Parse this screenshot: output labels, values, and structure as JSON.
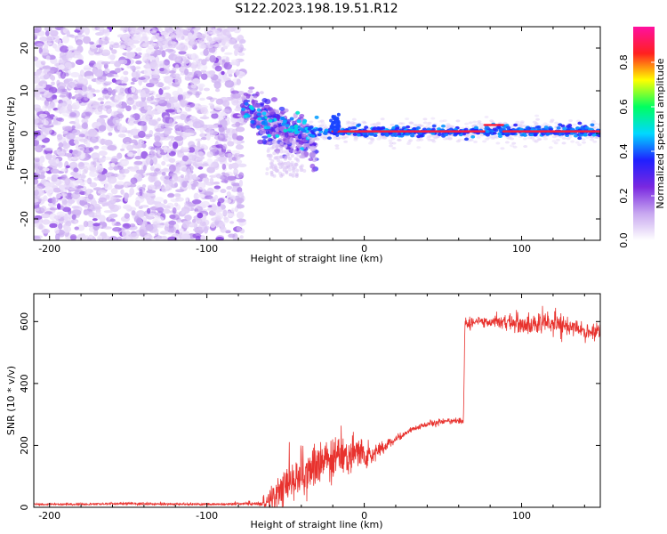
{
  "title": "S122.2023.198.19.51.R12",
  "colors": {
    "snr_line": "#e8322e",
    "axis": "#000000",
    "background": "#ffffff"
  },
  "chart_data": [
    {
      "type": "heatmap",
      "xlabel": "Height of straight line (km)",
      "ylabel": "Frequency (Hz)",
      "xlim": [
        -210,
        150
      ],
      "ylim": [
        -25,
        25
      ],
      "xticks": [
        -200,
        -100,
        0,
        100
      ],
      "yticks": [
        -20,
        -10,
        0,
        10,
        20
      ],
      "colorbar": {
        "label": "Normalized spectral amplitude",
        "range": [
          0,
          1
        ],
        "ticks": [
          "0.0",
          "0.2",
          "0.4",
          "0.6",
          "0.8"
        ],
        "colormap": [
          "#ffffff",
          "#c8a8f0",
          "#7a28e0",
          "#2020ff",
          "#00d8ff",
          "#00ff60",
          "#ffff00",
          "#ff2020",
          "#ff10a0"
        ]
      },
      "features": {
        "noise_region_x": [
          -210,
          -77
        ],
        "transition_region_x": [
          -77,
          -30
        ],
        "signal_line_freq": 0.5,
        "signal_line_x": [
          -30,
          150
        ],
        "bump_x": [
          76,
          88
        ],
        "bump_freq": 2
      }
    },
    {
      "type": "line",
      "xlabel": "Height of straight line (km)",
      "ylabel": "SNR (10 * v/v)",
      "xlim": [
        -210,
        150
      ],
      "ylim": [
        0,
        690
      ],
      "xticks": [
        -200,
        -100,
        0,
        100
      ],
      "yticks": [
        0,
        200,
        400,
        600
      ],
      "series": [
        {
          "x": [
            -210,
            -180,
            -150,
            -120,
            -90,
            -65,
            -60,
            -55,
            -50,
            -45,
            -40,
            -35,
            -30,
            -25,
            -20,
            -15,
            -10,
            -5,
            0,
            5,
            10,
            15,
            20,
            25,
            30,
            35,
            40,
            45,
            50,
            55,
            60,
            63,
            64,
            70,
            80,
            90,
            100,
            110,
            120,
            130,
            140,
            150
          ],
          "y": [
            10,
            10,
            12,
            10,
            10,
            12,
            25,
            45,
            70,
            90,
            100,
            110,
            130,
            150,
            160,
            170,
            160,
            175,
            160,
            170,
            185,
            205,
            220,
            235,
            250,
            262,
            268,
            273,
            276,
            278,
            280,
            282,
            590,
            598,
            600,
            598,
            592,
            595,
            600,
            585,
            570,
            570
          ],
          "noise": [
            3,
            3,
            4,
            3,
            3,
            6,
            30,
            40,
            45,
            50,
            55,
            55,
            55,
            60,
            55,
            50,
            45,
            40,
            35,
            25,
            20,
            15,
            10,
            10,
            8,
            8,
            8,
            8,
            8,
            8,
            10,
            10,
            20,
            12,
            15,
            20,
            25,
            30,
            35,
            25,
            20,
            20
          ]
        }
      ]
    }
  ]
}
